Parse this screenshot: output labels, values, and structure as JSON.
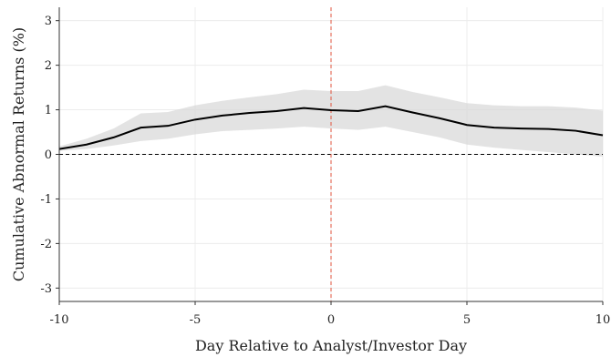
{
  "chart_data": {
    "type": "line",
    "title": "",
    "xlabel": "Day Relative to Analyst/Investor Day",
    "ylabel": "Cumulative Abnormal Returns (%)",
    "xlim": [
      -10,
      10
    ],
    "ylim": [
      -3.3,
      3.3
    ],
    "xticks": [
      -10,
      -5,
      0,
      5,
      10
    ],
    "yticks": [
      -3,
      -2,
      -1,
      0,
      1,
      2,
      3
    ],
    "grid": true,
    "reference_lines": [
      {
        "axis": "y",
        "value": 0,
        "style": "dashed",
        "color": "#000000"
      },
      {
        "axis": "x",
        "value": 0,
        "style": "dashed",
        "color": "#e0533c"
      }
    ],
    "x": [
      -10,
      -9,
      -8,
      -7,
      -6,
      -5,
      -4,
      -3,
      -2,
      -1,
      0,
      1,
      2,
      3,
      4,
      5,
      6,
      7,
      8,
      9,
      10
    ],
    "series": [
      {
        "values": [
          0.12,
          0.22,
          0.38,
          0.6,
          0.64,
          0.78,
          0.87,
          0.93,
          0.97,
          1.04,
          0.99,
          0.97,
          1.08,
          0.94,
          0.81,
          0.66,
          0.6,
          0.58,
          0.57,
          0.53,
          0.43
        ],
        "lower": [
          0.08,
          0.12,
          0.2,
          0.3,
          0.35,
          0.45,
          0.52,
          0.55,
          0.58,
          0.62,
          0.58,
          0.55,
          0.62,
          0.5,
          0.38,
          0.22,
          0.15,
          0.1,
          0.05,
          0.0,
          -0.05
        ],
        "upper": [
          0.18,
          0.35,
          0.58,
          0.92,
          0.95,
          1.1,
          1.2,
          1.28,
          1.35,
          1.45,
          1.42,
          1.42,
          1.55,
          1.4,
          1.28,
          1.15,
          1.1,
          1.08,
          1.08,
          1.05,
          0.98
        ],
        "color": "#000000",
        "band_color": "#d9d9d9"
      }
    ]
  }
}
